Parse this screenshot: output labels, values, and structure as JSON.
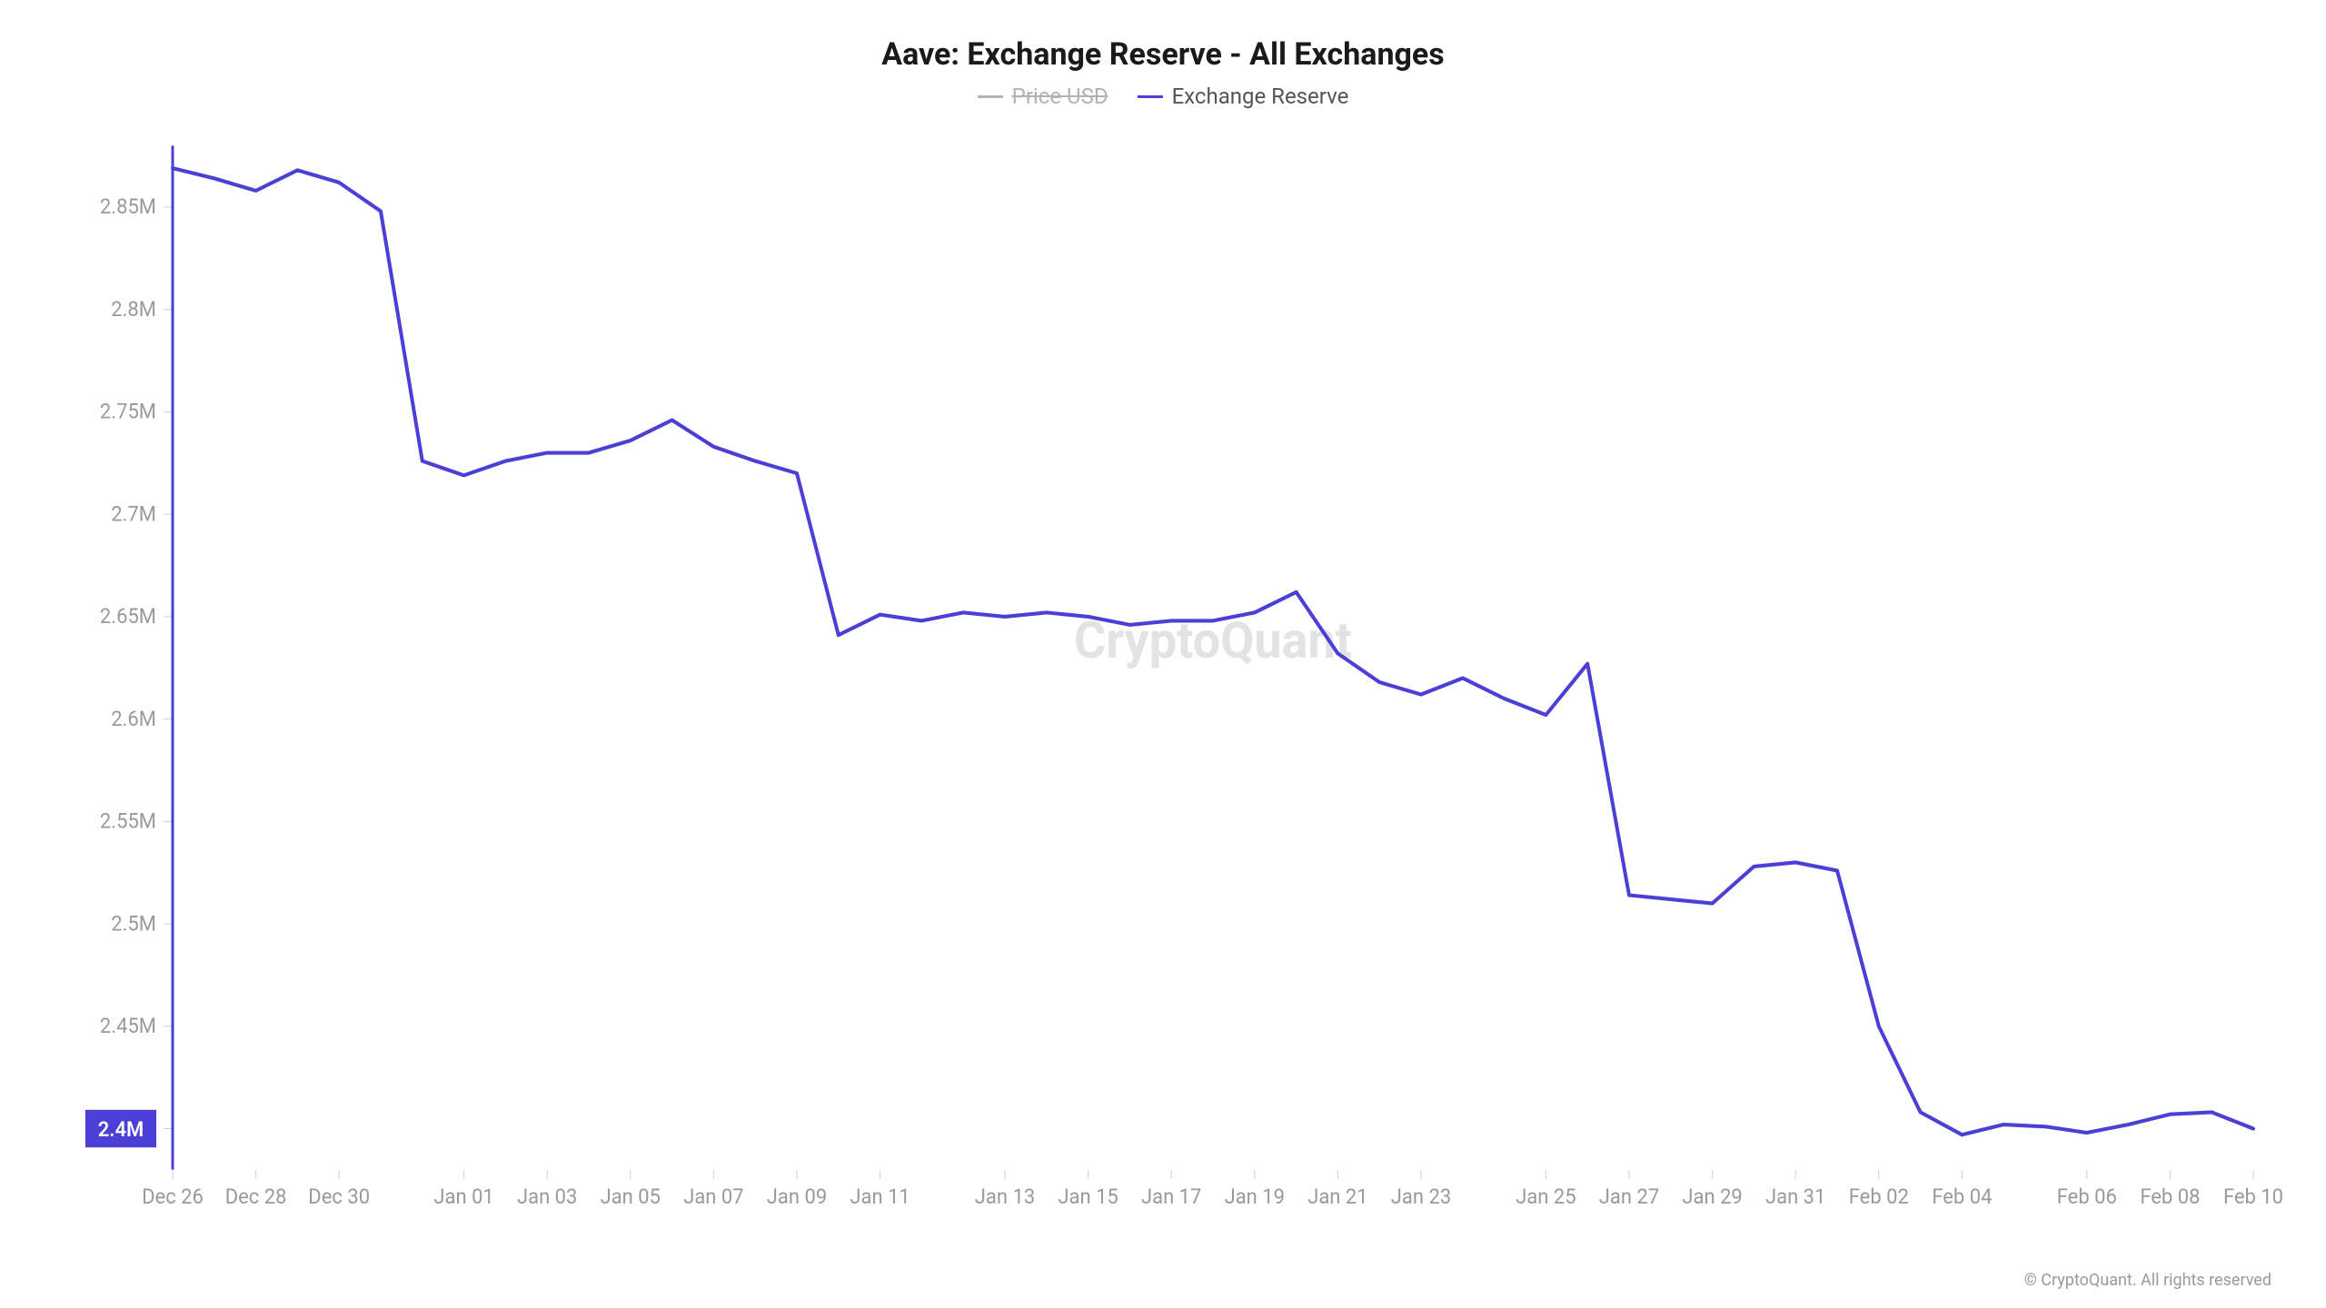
{
  "title": "Aave: Exchange Reserve - All Exchanges",
  "title_fontsize": 34,
  "title_color": "#1a1a1a",
  "legend": {
    "items": [
      {
        "label": "Price USD",
        "color": "#b3b3b3",
        "strikethrough": true
      },
      {
        "label": "Exchange Reserve",
        "color": "#4b3fd6",
        "strikethrough": false
      }
    ],
    "fontsize": 24
  },
  "watermark": {
    "text": "CryptoQuant",
    "fontsize": 54,
    "color": "#e3e3e3"
  },
  "copyright": {
    "text": "© CryptoQuant. All rights reserved",
    "fontsize": 18,
    "color": "#9a9a9a"
  },
  "chart": {
    "type": "line",
    "background_color": "#ffffff",
    "line_color": "#4b3fd6",
    "line_width": 4,
    "axis_color": "#4b3fd6",
    "axis_width": 3,
    "tick_color": "#cfcfcf",
    "label_color": "#9a9a9a",
    "label_fontsize": 22,
    "y": {
      "min": 2380000,
      "max": 2880000,
      "ticks": [
        2400000,
        2450000,
        2500000,
        2550000,
        2600000,
        2650000,
        2700000,
        2750000,
        2800000,
        2850000
      ],
      "tick_labels": [
        "2.4M",
        "2.45M",
        "2.5M",
        "2.55M",
        "2.6M",
        "2.65M",
        "2.7M",
        "2.75M",
        "2.8M",
        "2.85M"
      ],
      "highlight": {
        "value": 2400000,
        "label": "2.4M",
        "bg": "#4b3fd6",
        "fg": "#ffffff"
      }
    },
    "x": {
      "labels": [
        "Dec 26",
        "Dec 28",
        "Dec 30",
        "Jan 01",
        "Jan 03",
        "Jan 05",
        "Jan 07",
        "Jan 09",
        "Jan 11",
        "Jan 13",
        "Jan 15",
        "Jan 17",
        "Jan 19",
        "Jan 21",
        "Jan 23",
        "Jan 25",
        "Jan 27",
        "Jan 29",
        "Jan 31",
        "Feb 02",
        "Feb 04",
        "Feb 06",
        "Feb 08",
        "Feb 10"
      ]
    },
    "series": [
      {
        "name": "Exchange Reserve",
        "values": [
          2869000,
          2864000,
          2858000,
          2868000,
          2862000,
          2848000,
          2726000,
          2719000,
          2726000,
          2730000,
          2730000,
          2736000,
          2746000,
          2733000,
          2726000,
          2720000,
          2641000,
          2651000,
          2648000,
          2652000,
          2650000,
          2652000,
          2650000,
          2646000,
          2648000,
          2648000,
          2652000,
          2662000,
          2632000,
          2618000,
          2612000,
          2620000,
          2610000,
          2602000,
          2627000,
          2514000,
          2512000,
          2510000,
          2528000,
          2530000,
          2526000,
          2450000,
          2408000,
          2397000,
          2402000,
          2401000,
          2398000,
          2402000,
          2407000,
          2408000,
          2400000
        ]
      }
    ]
  }
}
